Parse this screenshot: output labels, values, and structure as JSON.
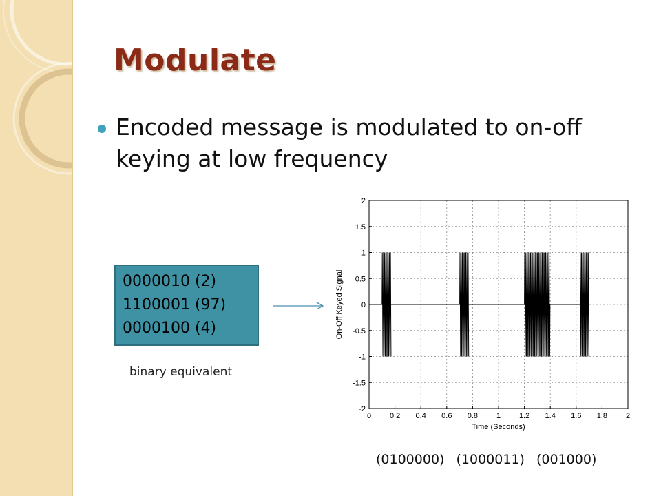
{
  "slide": {
    "title": "Modulate",
    "bullet": {
      "line1": "Encoded message is modulated to on-off",
      "line2": "keying at low frequency"
    },
    "binary_box": {
      "lines": [
        "0000010 (2)",
        "1100001 (97)",
        "0000100 (4)"
      ],
      "caption": "binary equivalent"
    },
    "codes": [
      "(0100000)",
      "(1000011)",
      "(001000)"
    ],
    "colors": {
      "title": "#8b2a17",
      "bullet": "#3fa2b8",
      "box": "#3f91a4",
      "sidebar": "#f3dfb1",
      "arrow": "#4a8fb0"
    }
  },
  "chart_data": {
    "type": "line",
    "title": "",
    "xlabel": "Time (Seconds)",
    "ylabel": "On-Off Keyed Signal",
    "xlim": [
      0,
      2
    ],
    "ylim": [
      -2,
      2
    ],
    "xticks": [
      0,
      0.2,
      0.4,
      0.6,
      0.8,
      1,
      1.2,
      1.4,
      1.6,
      1.8,
      2
    ],
    "xtick_labels": [
      "0",
      "0.2",
      "0.4",
      "0.6",
      "0.8",
      "1",
      "1.2",
      "1.4",
      "1.6",
      "1.8",
      "2"
    ],
    "yticks": [
      -2,
      -1.5,
      -1,
      -0.5,
      0,
      0.5,
      1,
      1.5,
      2
    ],
    "ytick_labels": [
      "-2",
      "-1.5",
      "-1",
      "-0.5",
      "0",
      "0.5",
      "1",
      "1.5",
      "2"
    ],
    "grid": true,
    "amplitude": 1,
    "signal_extent": [
      0,
      1.7
    ],
    "on_intervals": [
      [
        0.1,
        0.17
      ],
      [
        0.7,
        0.77
      ],
      [
        1.2,
        1.4
      ],
      [
        1.63,
        1.7
      ]
    ]
  }
}
